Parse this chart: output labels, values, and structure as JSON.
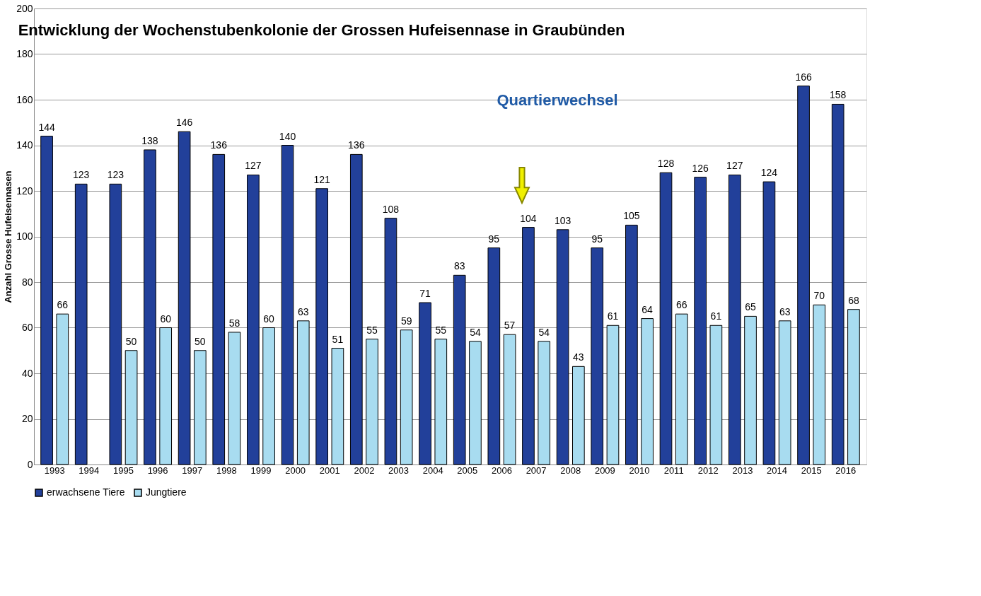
{
  "chart_data": {
    "type": "bar",
    "title": "Entwicklung der Wochenstubenkolonie der Grossen Hufeisennase in Graubünden",
    "ylabel": "Anzahl Grosse Hufeisennasen",
    "categories": [
      "1993",
      "1994",
      "1995",
      "1996",
      "1997",
      "1998",
      "1999",
      "2000",
      "2001",
      "2002",
      "2003",
      "2004",
      "2005",
      "2006",
      "2007",
      "2008",
      "2009",
      "2010",
      "2011",
      "2012",
      "2013",
      "2014",
      "2015",
      "2016"
    ],
    "series": [
      {
        "name": "erwachsene Tiere",
        "color": "#22409a",
        "values": [
          144,
          123,
          123,
          138,
          146,
          136,
          127,
          140,
          121,
          136,
          108,
          71,
          83,
          95,
          104,
          103,
          95,
          105,
          128,
          126,
          127,
          124,
          166,
          158
        ]
      },
      {
        "name": "Jungtiere",
        "color": "#a8dcf0",
        "values": [
          66,
          null,
          50,
          60,
          50,
          58,
          60,
          63,
          51,
          55,
          59,
          55,
          54,
          57,
          54,
          43,
          61,
          64,
          66,
          61,
          65,
          63,
          70,
          68
        ]
      }
    ],
    "ylim": [
      0,
      200
    ],
    "yticks": [
      0,
      20,
      40,
      60,
      80,
      100,
      120,
      140,
      160,
      180,
      200
    ],
    "grid": "y",
    "legend": "bottom",
    "data_labels": true,
    "annotations": [
      "Quartierwechsel"
    ]
  }
}
